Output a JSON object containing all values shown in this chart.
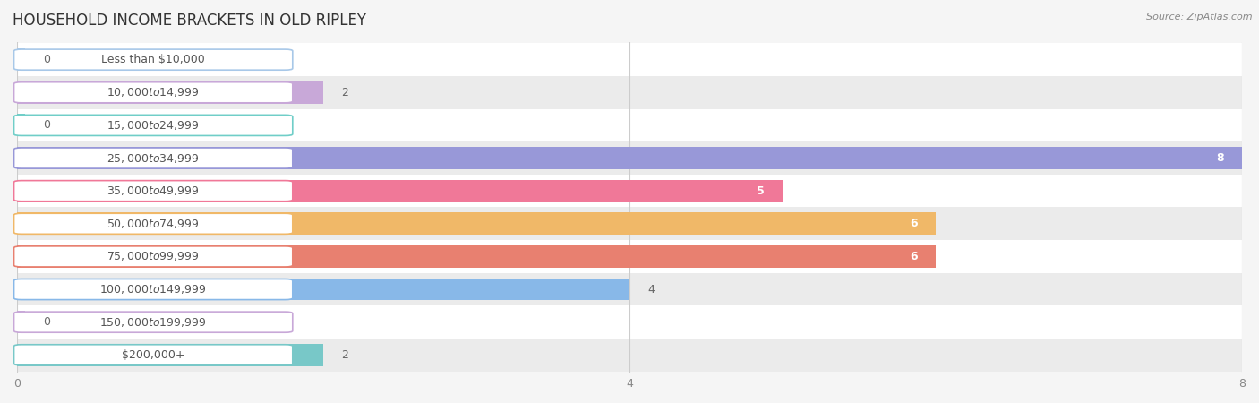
{
  "title": "HOUSEHOLD INCOME BRACKETS IN OLD RIPLEY",
  "source": "Source: ZipAtlas.com",
  "categories": [
    "Less than $10,000",
    "$10,000 to $14,999",
    "$15,000 to $24,999",
    "$25,000 to $34,999",
    "$35,000 to $49,999",
    "$50,000 to $74,999",
    "$75,000 to $99,999",
    "$100,000 to $149,999",
    "$150,000 to $199,999",
    "$200,000+"
  ],
  "values": [
    0,
    2,
    0,
    8,
    5,
    6,
    6,
    4,
    0,
    2
  ],
  "bar_colors": [
    "#a8c8e8",
    "#c8a8d8",
    "#70cec8",
    "#9898d8",
    "#f07898",
    "#f0b868",
    "#e88070",
    "#88b8e8",
    "#c8a8d8",
    "#78c8c8"
  ],
  "xlim_max": 8,
  "xticks": [
    0,
    4,
    8
  ],
  "bg_color": "#f5f5f5",
  "row_colors": [
    "#ffffff",
    "#ebebeb"
  ],
  "title_fontsize": 12,
  "label_fontsize": 9,
  "value_fontsize": 9
}
